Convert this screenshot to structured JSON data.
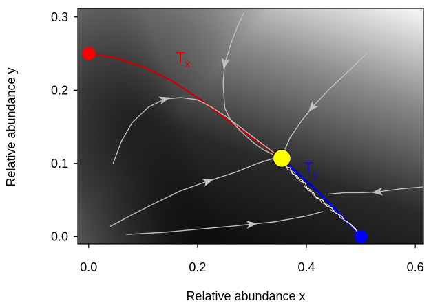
{
  "chart_data": {
    "type": "line",
    "xlabel": "Relative abundance x",
    "ylabel": "Relative abundance y",
    "xlim": [
      -0.02,
      0.615
    ],
    "ylim": [
      -0.01,
      0.312
    ],
    "xticks": [
      "0.0",
      "0.2",
      "0.4",
      "0.6"
    ],
    "yticks": [
      "0.0",
      "0.1",
      "0.2",
      "0.3"
    ],
    "background": "grayscale gradient (dark near the Tx/Ty line, light toward top-right)",
    "grid": false,
    "legend": "none",
    "curve_labels": [
      {
        "text": "T",
        "sub": "x",
        "color": "#dd0000",
        "x": 0.16,
        "y": 0.238
      },
      {
        "text": "T",
        "sub": "y",
        "color": "#1010cc",
        "x": 0.395,
        "y": 0.087
      }
    ],
    "fixed_points": [
      {
        "x": 0.0,
        "y": 0.25,
        "color": "#ff0000"
      },
      {
        "x": 0.355,
        "y": 0.107,
        "color": "#ffff00"
      },
      {
        "x": 0.5,
        "y": 0.0,
        "color": "#0000ff"
      }
    ],
    "series": [
      {
        "color": "#cc0000",
        "width": 2.4,
        "points": [
          [
            0.0,
            0.25
          ],
          [
            0.05,
            0.244
          ],
          [
            0.1,
            0.232
          ],
          [
            0.15,
            0.214
          ],
          [
            0.2,
            0.19
          ],
          [
            0.25,
            0.162
          ],
          [
            0.3,
            0.135
          ],
          [
            0.33,
            0.12
          ],
          [
            0.345,
            0.112
          ]
        ]
      },
      {
        "color": "#0000dd",
        "width": 3,
        "points": [
          [
            0.355,
            0.107
          ],
          [
            0.38,
            0.089
          ],
          [
            0.41,
            0.069
          ],
          [
            0.44,
            0.047
          ],
          [
            0.47,
            0.024
          ],
          [
            0.5,
            0.0
          ]
        ]
      },
      {
        "color": "#c0c0c0",
        "width": 1.4,
        "points": [
          [
            0.285,
            0.305
          ],
          [
            0.275,
            0.29
          ],
          [
            0.262,
            0.265
          ],
          [
            0.25,
            0.236
          ],
          [
            0.247,
            0.21
          ],
          [
            0.25,
            0.176
          ],
          [
            0.26,
            0.16
          ],
          [
            0.278,
            0.145
          ],
          [
            0.3,
            0.13
          ],
          [
            0.32,
            0.119
          ],
          [
            0.345,
            0.11
          ]
        ],
        "arrows": [
          [
            0.25,
            0.236
          ]
        ]
      },
      {
        "color": "#c0c0c0",
        "width": 1.4,
        "points": [
          [
            0.045,
            0.1
          ],
          [
            0.06,
            0.13
          ],
          [
            0.08,
            0.156
          ],
          [
            0.11,
            0.177
          ],
          [
            0.14,
            0.188
          ],
          [
            0.17,
            0.19
          ],
          [
            0.2,
            0.187
          ],
          [
            0.23,
            0.175
          ],
          [
            0.26,
            0.16
          ],
          [
            0.29,
            0.143
          ],
          [
            0.32,
            0.126
          ],
          [
            0.345,
            0.112
          ]
        ],
        "arrows": [
          [
            0.14,
            0.188
          ]
        ]
      },
      {
        "color": "#c0c0c0",
        "width": 1.4,
        "points": [
          [
            0.51,
            0.25
          ],
          [
            0.48,
            0.228
          ],
          [
            0.44,
            0.2
          ],
          [
            0.41,
            0.176
          ],
          [
            0.39,
            0.157
          ],
          [
            0.37,
            0.135
          ],
          [
            0.36,
            0.118
          ]
        ],
        "arrows": [
          [
            0.41,
            0.176
          ]
        ]
      },
      {
        "color": "#c0c0c0",
        "width": 1.4,
        "points": [
          [
            0.04,
            0.014
          ],
          [
            0.08,
            0.03
          ],
          [
            0.12,
            0.045
          ],
          [
            0.17,
            0.063
          ],
          [
            0.22,
            0.076
          ],
          [
            0.27,
            0.088
          ],
          [
            0.31,
            0.1
          ],
          [
            0.345,
            0.108
          ]
        ],
        "arrows": [
          [
            0.22,
            0.076
          ]
        ]
      },
      {
        "color": "#c0c0c0",
        "width": 1.4,
        "points": [
          [
            0.07,
            0.003
          ],
          [
            0.14,
            0.006
          ],
          [
            0.2,
            0.01
          ],
          [
            0.26,
            0.014
          ],
          [
            0.3,
            0.017
          ],
          [
            0.34,
            0.02
          ],
          [
            0.37,
            0.024
          ],
          [
            0.4,
            0.028
          ],
          [
            0.43,
            0.034
          ]
        ],
        "arrows": [
          [
            0.3,
            0.017
          ]
        ]
      },
      {
        "color": "#c0c0c0",
        "width": 1.4,
        "points": [
          [
            0.615,
            0.068
          ],
          [
            0.57,
            0.065
          ],
          [
            0.53,
            0.061
          ],
          [
            0.5,
            0.06
          ],
          [
            0.47,
            0.06
          ],
          [
            0.44,
            0.058
          ]
        ],
        "arrows": [
          [
            0.53,
            0.061
          ]
        ]
      },
      {
        "color": "#ffffff",
        "width": 1.2,
        "points": [
          [
            0.348,
            0.105
          ],
          [
            0.355,
            0.102
          ],
          [
            0.36,
            0.096
          ],
          [
            0.37,
            0.094
          ],
          [
            0.374,
            0.086
          ],
          [
            0.383,
            0.083
          ],
          [
            0.388,
            0.076
          ],
          [
            0.398,
            0.073
          ],
          [
            0.402,
            0.064
          ],
          [
            0.413,
            0.06
          ],
          [
            0.418,
            0.053
          ],
          [
            0.43,
            0.05
          ],
          [
            0.436,
            0.042
          ],
          [
            0.447,
            0.039
          ],
          [
            0.452,
            0.033
          ],
          [
            0.465,
            0.028
          ],
          [
            0.47,
            0.022
          ],
          [
            0.48,
            0.018
          ],
          [
            0.49,
            0.011
          ],
          [
            0.495,
            0.004
          ]
        ]
      },
      {
        "color": "#dddddd",
        "width": 1.0,
        "points": [
          [
            0.352,
            0.108
          ],
          [
            0.362,
            0.1
          ],
          [
            0.365,
            0.092
          ],
          [
            0.378,
            0.088
          ],
          [
            0.382,
            0.08
          ],
          [
            0.393,
            0.077
          ],
          [
            0.397,
            0.068
          ],
          [
            0.408,
            0.064
          ],
          [
            0.412,
            0.057
          ],
          [
            0.424,
            0.052
          ],
          [
            0.428,
            0.046
          ],
          [
            0.441,
            0.043
          ],
          [
            0.445,
            0.036
          ],
          [
            0.458,
            0.031
          ],
          [
            0.462,
            0.026
          ],
          [
            0.476,
            0.02
          ],
          [
            0.484,
            0.014
          ],
          [
            0.492,
            0.008
          ]
        ]
      }
    ]
  }
}
